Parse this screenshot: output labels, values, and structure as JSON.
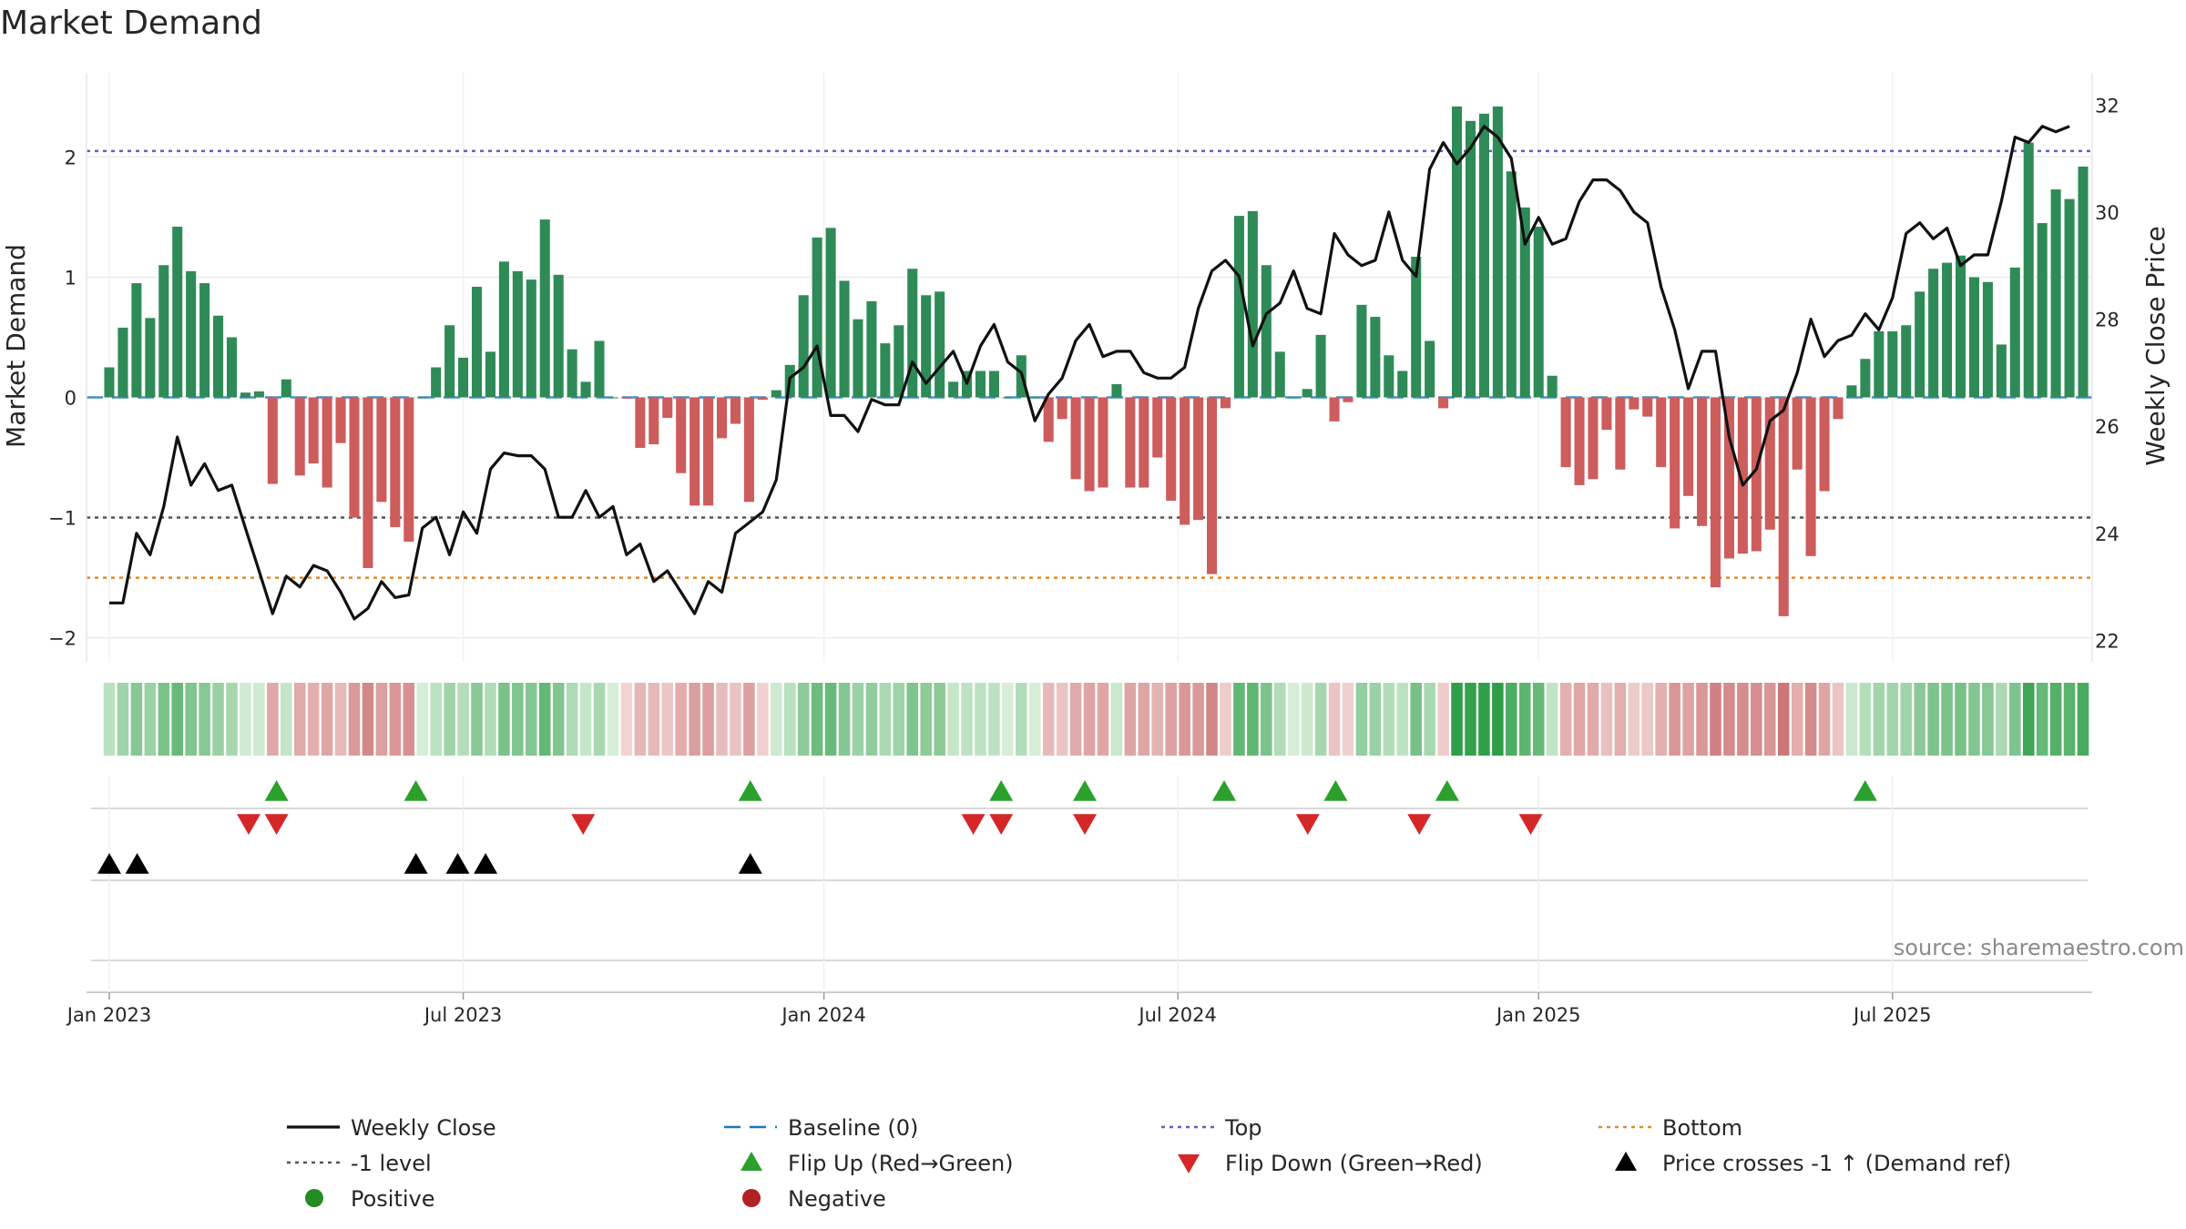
{
  "chart_data": {
    "type": "bar",
    "title": "Market Demand",
    "ylabel": "Market Demand",
    "y2label": "Weekly Close Price",
    "ylim": [
      -2.2,
      2.7
    ],
    "y2lim": [
      21.6,
      32.6
    ],
    "yticks": [
      -2,
      -1,
      0,
      1,
      2
    ],
    "y2ticks": [
      22,
      24,
      26,
      28,
      30,
      32
    ],
    "xtick_labels": [
      {
        "label": "Jan 2023",
        "week": 0
      },
      {
        "label": "Jul 2023",
        "week": 26
      },
      {
        "label": "Jan 2024",
        "week": 52.5
      },
      {
        "label": "Jul 2024",
        "week": 78.5
      },
      {
        "label": "Jan 2025",
        "week": 105
      },
      {
        "label": "Jul 2025",
        "week": 131
      }
    ],
    "reference_lines": {
      "top": 2.05,
      "minus_one": -1,
      "bottom": -1.5,
      "baseline": 0
    },
    "source": "source: sharemaestro.com",
    "demand": [
      0.25,
      0.58,
      0.95,
      0.66,
      1.1,
      1.42,
      1.05,
      0.95,
      0.68,
      0.5,
      0.04,
      0.05,
      -0.72,
      0.15,
      -0.65,
      -0.55,
      -0.75,
      -0.38,
      -1.0,
      -1.42,
      -0.87,
      -1.08,
      -1.2,
      0.0,
      0.25,
      0.6,
      0.33,
      0.92,
      0.38,
      1.13,
      1.05,
      0.98,
      1.48,
      1.02,
      0.4,
      0.13,
      0.47,
      0.0,
      -0.01,
      -0.42,
      -0.39,
      -0.17,
      -0.63,
      -0.9,
      -0.9,
      -0.34,
      -0.22,
      -0.87,
      -0.02,
      0.06,
      0.27,
      0.85,
      1.33,
      1.41,
      0.97,
      0.65,
      0.8,
      0.45,
      0.6,
      1.07,
      0.85,
      0.88,
      0.13,
      0.22,
      0.22,
      0.22,
      0.0,
      0.35,
      0.0,
      -0.37,
      -0.18,
      -0.68,
      -0.78,
      -0.75,
      0.11,
      -0.75,
      -0.75,
      -0.5,
      -0.86,
      -1.06,
      -1.02,
      -1.47,
      -0.09,
      1.51,
      1.55,
      1.1,
      0.38,
      0.0,
      0.07,
      0.52,
      -0.2,
      -0.04,
      0.77,
      0.67,
      0.35,
      0.22,
      1.17,
      0.47,
      -0.09,
      2.42,
      2.3,
      2.36,
      2.42,
      1.88,
      1.58,
      1.42,
      0.18,
      -0.58,
      -0.73,
      -0.68,
      -0.27,
      -0.6,
      -0.1,
      -0.16,
      -0.58,
      -1.09,
      -0.82,
      -1.07,
      -1.58,
      -1.34,
      -1.3,
      -1.28,
      -1.1,
      -1.82,
      -0.6,
      -1.32,
      -0.78,
      -0.18,
      0.1,
      0.32,
      0.55,
      0.55,
      0.6,
      0.88,
      1.07,
      1.12,
      1.18,
      1.0,
      0.96,
      0.44,
      1.08,
      2.12,
      1.45,
      1.73,
      1.65,
      1.92
    ],
    "close": [
      22.7,
      22.7,
      24.0,
      23.6,
      24.5,
      25.8,
      24.9,
      25.3,
      24.8,
      24.9,
      24.1,
      23.3,
      22.5,
      23.2,
      23.0,
      23.4,
      23.3,
      22.9,
      22.4,
      22.6,
      23.1,
      22.8,
      22.85,
      24.1,
      24.3,
      23.6,
      24.4,
      24.0,
      25.2,
      25.5,
      25.45,
      25.45,
      25.2,
      24.3,
      24.3,
      24.8,
      24.3,
      24.5,
      23.6,
      23.8,
      23.1,
      23.3,
      22.9,
      22.5,
      23.1,
      22.9,
      24.0,
      24.2,
      24.4,
      25.0,
      26.9,
      27.1,
      27.5,
      26.2,
      26.2,
      25.9,
      26.5,
      26.4,
      26.4,
      27.2,
      26.8,
      27.1,
      27.4,
      26.8,
      27.5,
      27.9,
      27.2,
      27.0,
      26.1,
      26.6,
      26.9,
      27.6,
      27.9,
      27.3,
      27.4,
      27.4,
      27.0,
      26.9,
      26.9,
      27.1,
      28.2,
      28.9,
      29.1,
      28.8,
      27.5,
      28.1,
      28.3,
      28.9,
      28.2,
      28.1,
      29.6,
      29.2,
      29.0,
      29.1,
      30.0,
      29.1,
      28.8,
      30.8,
      31.3,
      30.9,
      31.2,
      31.6,
      31.4,
      31.0,
      29.4,
      29.9,
      29.4,
      29.5,
      30.2,
      30.6,
      30.6,
      30.4,
      30.0,
      29.8,
      28.6,
      27.8,
      26.7,
      27.4,
      27.4,
      25.8,
      24.9,
      25.2,
      26.1,
      26.3,
      27.0,
      28.0,
      27.3,
      27.6,
      27.7,
      28.1,
      27.8,
      28.4,
      29.6,
      29.8,
      29.5,
      29.7,
      29.0,
      29.2,
      29.2,
      30.2,
      31.4,
      31.3,
      31.6,
      31.5,
      31.6
    ],
    "markers": {
      "flip_up": [
        6,
        11,
        23,
        32,
        35,
        40,
        44,
        48,
        63
      ],
      "flip_down": [
        5,
        6,
        17,
        31,
        32,
        35,
        43,
        47,
        51
      ],
      "price_cross": [
        0,
        1,
        11,
        12.5,
        13.5,
        23
      ]
    },
    "legend": [
      {
        "label": "Weekly Close",
        "symbol": "line",
        "color": "#111111"
      },
      {
        "label": "Baseline (0)",
        "symbol": "dashed",
        "color": "#1f77b4"
      },
      {
        "label": "Top",
        "symbol": "dotted",
        "color": "#6a5acd"
      },
      {
        "label": "Bottom",
        "symbol": "dotted",
        "color": "#e08a2b"
      },
      {
        "label": "-1 level",
        "symbol": "dotted",
        "color": "#555555"
      },
      {
        "label": "Flip Up (Red→Green)",
        "symbol": "triangle-up",
        "color": "#2ca02c"
      },
      {
        "label": "Flip Down (Green→Red)",
        "symbol": "triangle-down",
        "color": "#d62728"
      },
      {
        "label": "Price crosses -1 ↑ (Demand ref)",
        "symbol": "triangle-up",
        "color": "#000000"
      },
      {
        "label": "Positive",
        "symbol": "circle",
        "color": "#228b22"
      },
      {
        "label": "Negative",
        "symbol": "circle",
        "color": "#b22222"
      }
    ],
    "colors": {
      "positive": "#2e8b57",
      "negative": "#cd5c5c",
      "price": "#111111",
      "grid": "#ebebeb"
    }
  }
}
